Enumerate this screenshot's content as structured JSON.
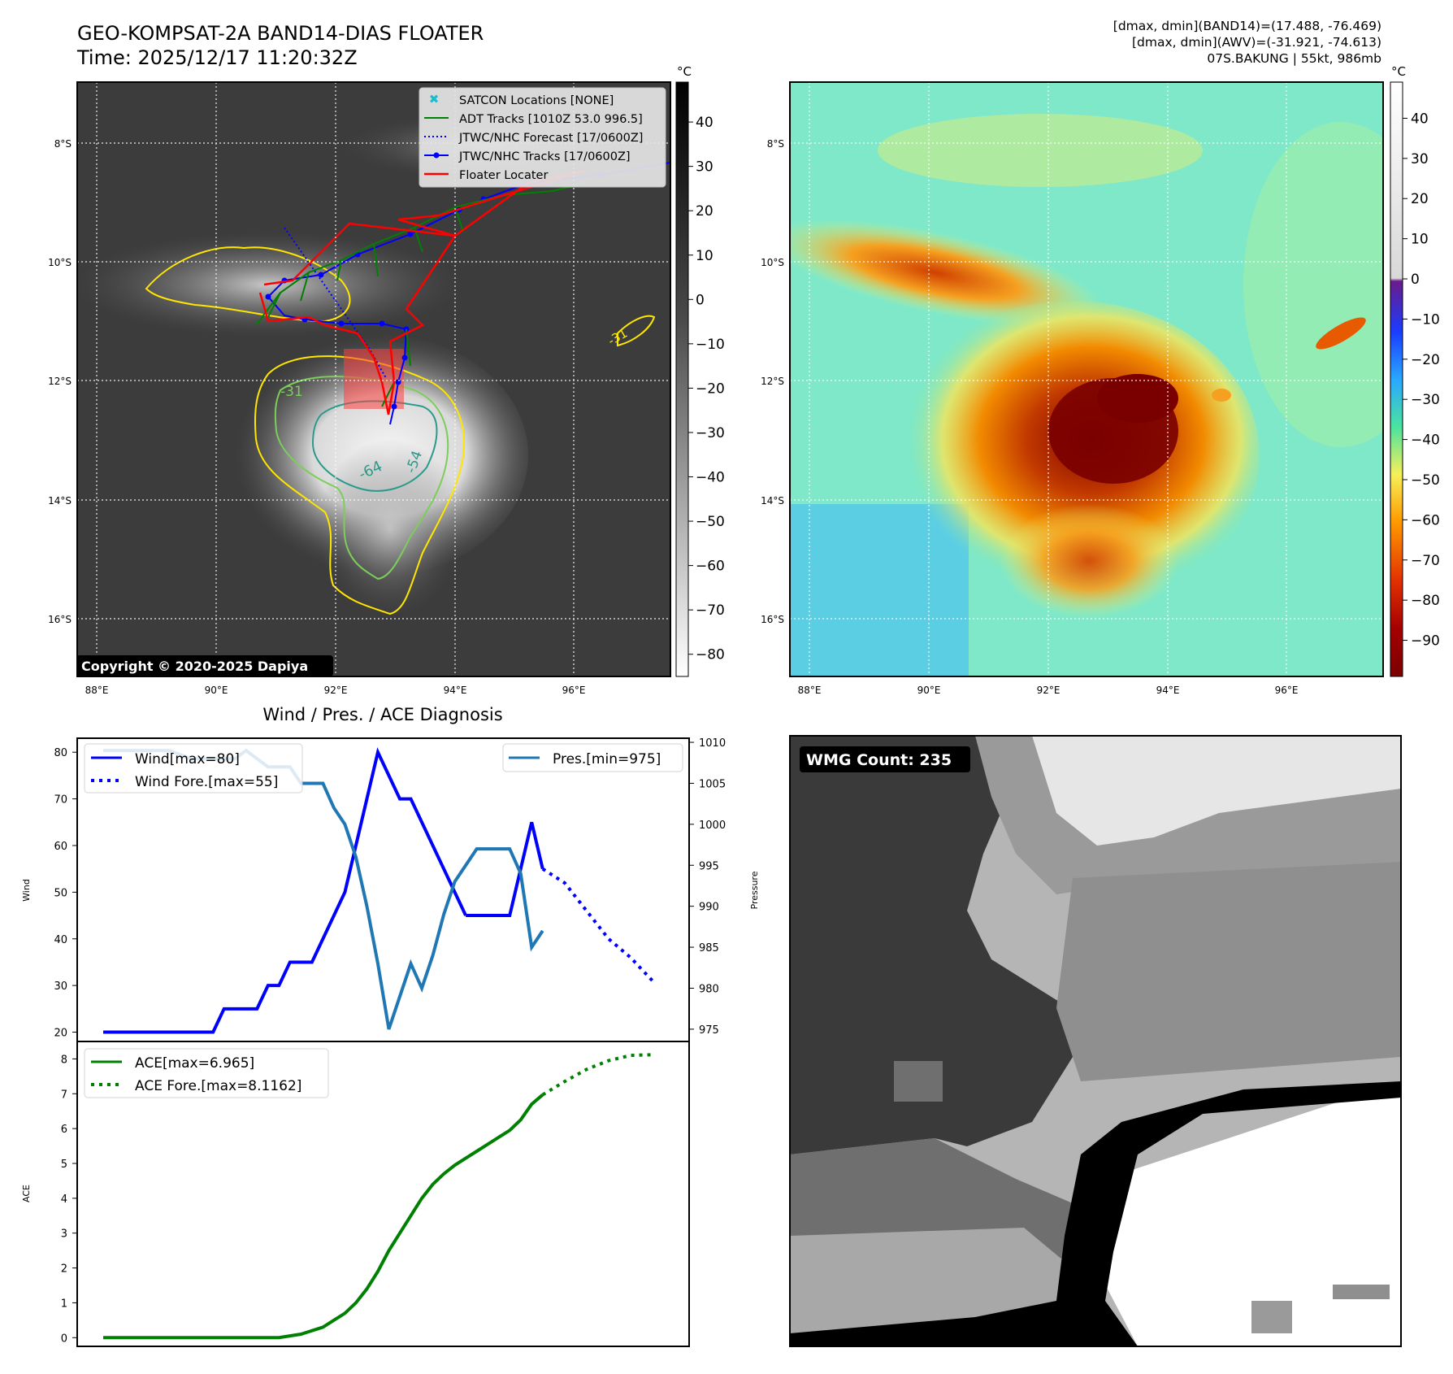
{
  "header": {
    "title_line1": "GEO-KOMPSAT-2A BAND14-DIAS FLOATER",
    "title_line2": "Time: 2025/12/17 11:20:32Z",
    "stats_line1": "[dmax, dmin](BAND14)=(17.488, -76.469)",
    "stats_line2": "[dmax, dmin](AWV)=(-31.921, -74.613)",
    "stats_line3": "07S.BAKUNG | 55kt, 986mb"
  },
  "ir_panel": {
    "lat_labels": [
      "8°S",
      "10°S",
      "12°S",
      "14°S",
      "16°S"
    ],
    "lon_labels": [
      "88°E",
      "90°E",
      "92°E",
      "94°E",
      "96°E"
    ],
    "colorbar_unit": "°C",
    "colorbar_ticks": [
      "40",
      "30",
      "20",
      "10",
      "0",
      "−10",
      "−20",
      "−30",
      "−40",
      "−50",
      "−60",
      "−70",
      "−80"
    ],
    "copyright": "Copyright © 2020-2025 Dapiya",
    "contour_labels": [
      "-31",
      "-64",
      "-54",
      "-31"
    ],
    "legend": [
      {
        "label": "SATCON Locations [NONE]",
        "color": "#17becf",
        "style": "x"
      },
      {
        "label": "ADT Tracks [1010Z 53.0 996.5]",
        "color": "#008000",
        "style": "solid"
      },
      {
        "label": "JTWC/NHC Forecast [17/0600Z]",
        "color": "#0000ff",
        "style": "dotted"
      },
      {
        "label": "JTWC/NHC Tracks [17/0600Z]",
        "color": "#0000ff",
        "style": "marker"
      },
      {
        "label": "Floater Locater",
        "color": "#ff0000",
        "style": "solid"
      }
    ]
  },
  "color_panel": {
    "lat_labels": [
      "8°S",
      "10°S",
      "12°S",
      "14°S",
      "16°S"
    ],
    "lon_labels": [
      "88°E",
      "90°E",
      "92°E",
      "94°E",
      "96°E"
    ],
    "colorbar_unit": "°C",
    "colorbar_ticks": [
      "40",
      "30",
      "20",
      "10",
      "0",
      "−10",
      "−20",
      "−30",
      "−40",
      "−50",
      "−60",
      "−70",
      "−80",
      "−90"
    ]
  },
  "wmg_panel": {
    "label": "WMG Count: 235"
  },
  "chart_data": [
    {
      "type": "line",
      "title": "Wind / Pres. / ACE Diagnosis",
      "ylabel": "Wind",
      "ylabel_right": "Pressure",
      "ylim": [
        18,
        83
      ],
      "ylim_right": [
        973.5,
        1010.5
      ],
      "yticks": [
        "20",
        "30",
        "40",
        "50",
        "60",
        "70",
        "80"
      ],
      "yticks_right": [
        "975",
        "980",
        "985",
        "990",
        "995",
        "1000",
        "1005",
        "1010"
      ],
      "legend_left": [
        "Wind[max=80]",
        "Wind Fore.[max=55]"
      ],
      "legend_right": [
        "Pres.[min=975]"
      ],
      "colors": {
        "wind": "#0000ff",
        "pressure": "#1f77b4"
      },
      "series": [
        {
          "name": "Wind",
          "style": "solid",
          "x": [
            0,
            2,
            4,
            5,
            7,
            10,
            11,
            12,
            13,
            14,
            15,
            16,
            17,
            18,
            19,
            20,
            21,
            22,
            23,
            24,
            25,
            26,
            27,
            28,
            30,
            31,
            32,
            33
          ],
          "values": [
            20,
            20,
            20,
            20,
            20,
            20,
            25,
            25,
            25,
            25,
            30,
            30,
            35,
            35,
            35,
            40,
            45,
            50,
            60,
            70,
            80,
            75,
            70,
            70,
            60,
            55,
            50,
            45
          ]
        },
        {
          "name": "Wind (cont)",
          "style": "solid",
          "x": [
            33,
            34,
            35,
            36,
            37,
            38,
            39,
            40
          ],
          "values": [
            45,
            45,
            45,
            45,
            45,
            55,
            65,
            55
          ]
        },
        {
          "name": "Wind Fore.",
          "style": "dotted",
          "x": [
            40,
            42,
            44,
            46,
            48,
            50
          ],
          "values": [
            55,
            52,
            46,
            40,
            36,
            31
          ]
        },
        {
          "name": "Pres.",
          "style": "solid",
          "x": [
            0,
            2,
            4,
            6,
            8,
            9,
            10,
            11,
            12,
            13,
            14,
            15,
            16,
            17,
            18,
            19,
            20,
            21,
            22,
            23,
            24,
            25,
            26,
            27,
            28,
            29,
            30,
            31,
            32,
            33,
            34,
            35,
            36,
            37,
            38,
            39,
            40
          ],
          "values": [
            1009,
            1009,
            1009,
            1009,
            1008,
            1008,
            1008,
            1008,
            1008,
            1009,
            1008,
            1007,
            1007,
            1007,
            1005,
            1005,
            1005,
            1002,
            1000,
            996,
            990,
            983,
            975,
            979,
            983,
            980,
            984,
            989,
            993,
            995,
            997,
            997,
            997,
            997,
            994,
            985,
            987
          ]
        }
      ]
    },
    {
      "type": "line",
      "ylabel": "ACE",
      "ylim": [
        -0.25,
        8.5
      ],
      "yticks": [
        "0",
        "1",
        "2",
        "3",
        "4",
        "5",
        "6",
        "7",
        "8"
      ],
      "legend": [
        "ACE[max=6.965]",
        "ACE Fore.[max=8.1162]"
      ],
      "colors": {
        "ace": "#008000"
      },
      "series": [
        {
          "name": "ACE",
          "style": "solid",
          "x": [
            0,
            5,
            10,
            12,
            14,
            16,
            18,
            19,
            20,
            21,
            22,
            23,
            24,
            25,
            26,
            27,
            28,
            29,
            30,
            31,
            32,
            33,
            34,
            35,
            36,
            37,
            38,
            39,
            40
          ],
          "values": [
            0,
            0,
            0,
            0,
            0,
            0,
            0.1,
            0.2,
            0.3,
            0.5,
            0.7,
            1.0,
            1.4,
            1.9,
            2.5,
            3.0,
            3.5,
            4.0,
            4.4,
            4.7,
            4.95,
            5.15,
            5.35,
            5.55,
            5.75,
            5.95,
            6.25,
            6.7,
            6.97
          ]
        },
        {
          "name": "ACE Fore.",
          "style": "dotted",
          "x": [
            40,
            42,
            44,
            46,
            48,
            50
          ],
          "values": [
            6.97,
            7.35,
            7.7,
            7.95,
            8.1,
            8.12
          ]
        }
      ]
    }
  ]
}
